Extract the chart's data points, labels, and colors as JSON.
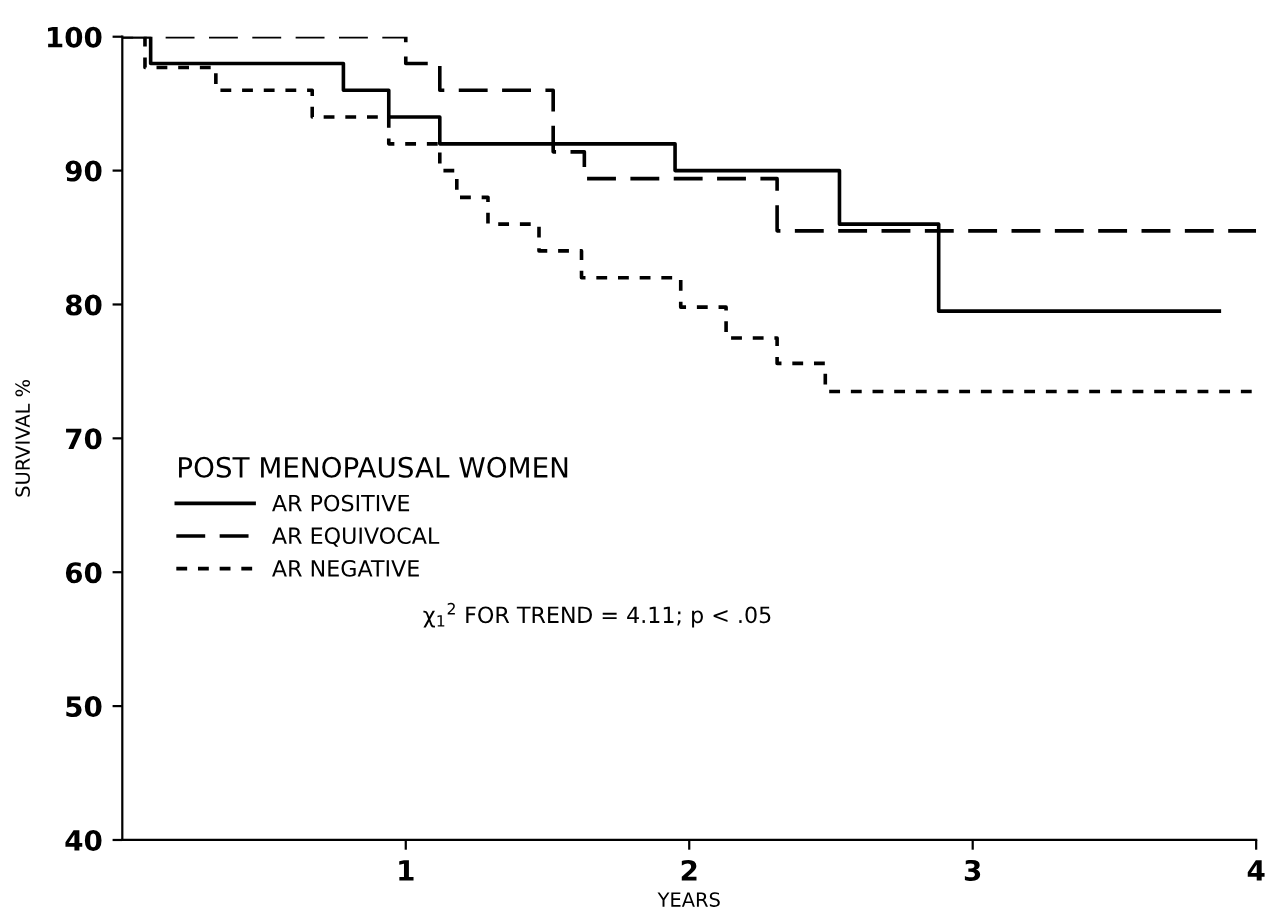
{
  "chart_data": {
    "type": "step",
    "xlabel": "YEARS",
    "ylabel": "SURVIVAL %",
    "legend_title": "POST MENOPAUSAL WOMEN",
    "xlim": [
      0,
      4
    ],
    "xticks": [
      1,
      2,
      3,
      4
    ],
    "ylim": [
      40,
      100
    ],
    "yticks": [
      40,
      50,
      60,
      70,
      80,
      90,
      100
    ],
    "grid": false,
    "legend": "left",
    "series": [
      {
        "name": "AR POSITIVE",
        "color": "#000000",
        "line_style": "solid",
        "x": [
          0,
          0.1,
          0.78,
          0.94,
          1.12,
          1.95,
          2.53,
          2.88,
          3.87
        ],
        "values": [
          100,
          98,
          96,
          94,
          92,
          90,
          86,
          79.5,
          79.5
        ]
      },
      {
        "name": "AR EQUIVOCAL",
        "color": "#000000",
        "line_style": "dashed",
        "x": [
          0,
          1.0,
          1.12,
          1.52,
          1.63,
          2.31,
          4.0
        ],
        "values": [
          100,
          98,
          96,
          91.4,
          89.4,
          85.5,
          85.5
        ]
      },
      {
        "name": "AR NEGATIVE",
        "color": "#000000",
        "line_style": "dotted",
        "x": [
          0,
          0.08,
          0.33,
          0.67,
          0.94,
          1.12,
          1.18,
          1.29,
          1.47,
          1.62,
          1.97,
          2.13,
          2.31,
          2.48,
          4.0
        ],
        "values": [
          100,
          97.7,
          96,
          94,
          92,
          90,
          88,
          86,
          84,
          82,
          79.8,
          77.5,
          75.6,
          73.5,
          73.5
        ]
      }
    ],
    "annotations": [
      "χ$_{1}$$^{2}$ FOR TREND = 4.11; p < .05"
    ]
  }
}
